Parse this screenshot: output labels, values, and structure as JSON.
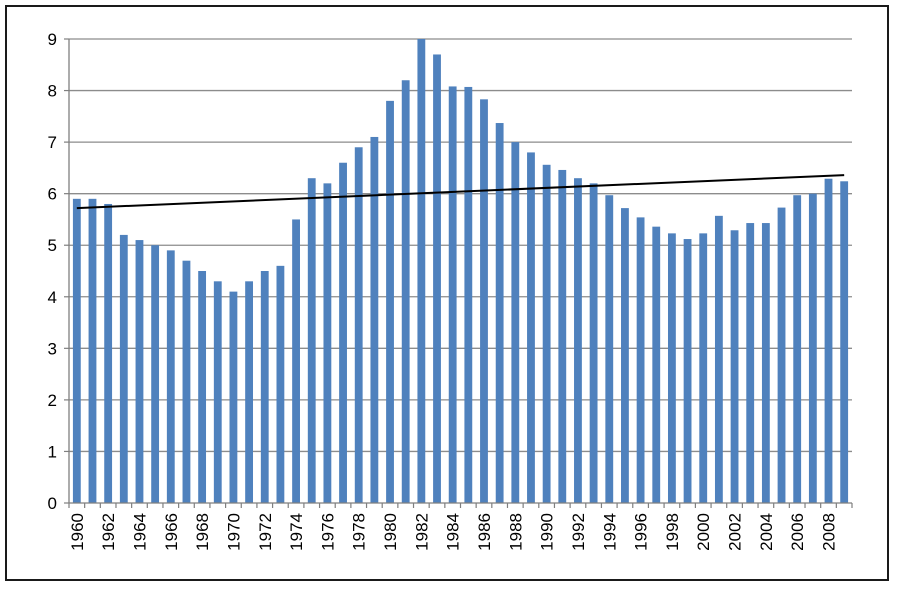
{
  "chart_data": {
    "type": "bar",
    "title": "",
    "xlabel": "",
    "ylabel": "",
    "ylim": [
      0,
      9
    ],
    "y_ticks": [
      "0",
      "1",
      "2",
      "3",
      "4",
      "5",
      "6",
      "7",
      "8",
      "9"
    ],
    "grid": true,
    "legend": "none",
    "bar_color": "#4f81bd",
    "trendline": {
      "type": "linear",
      "color": "#000000",
      "start": 5.72,
      "end": 6.36
    },
    "categories": [
      "1960",
      "1961",
      "1962",
      "1963",
      "1964",
      "1965",
      "1966",
      "1967",
      "1968",
      "1969",
      "1970",
      "1971",
      "1972",
      "1973",
      "1974",
      "1975",
      "1976",
      "1977",
      "1978",
      "1979",
      "1980",
      "1981",
      "1982",
      "1983",
      "1984",
      "1985",
      "1986",
      "1987",
      "1988",
      "1989",
      "1990",
      "1991",
      "1992",
      "1993",
      "1994",
      "1995",
      "1996",
      "1997",
      "1998",
      "1999",
      "2000",
      "2001",
      "2002",
      "2003",
      "2004",
      "2005",
      "2006",
      "2007",
      "2008",
      "2009"
    ],
    "x_tick_labels": [
      "1960",
      "1962",
      "1964",
      "1966",
      "1968",
      "1970",
      "1972",
      "1974",
      "1976",
      "1978",
      "1980",
      "1982",
      "1984",
      "1986",
      "1988",
      "1990",
      "1992",
      "1994",
      "1996",
      "1998",
      "2000",
      "2002",
      "2004",
      "2006",
      "2008"
    ],
    "values": [
      5.9,
      5.9,
      5.8,
      5.2,
      5.1,
      5.0,
      4.9,
      4.7,
      4.5,
      4.3,
      4.1,
      4.3,
      4.5,
      4.6,
      5.5,
      6.3,
      6.2,
      6.6,
      6.9,
      7.1,
      7.8,
      8.2,
      9.0,
      8.7,
      8.08,
      8.07,
      7.83,
      7.37,
      7.0,
      6.8,
      6.56,
      6.46,
      6.3,
      6.2,
      5.97,
      5.72,
      5.54,
      5.36,
      5.23,
      5.12,
      5.23,
      5.57,
      5.29,
      5.43,
      5.43,
      5.73,
      5.97,
      6.0,
      6.29,
      6.24
    ]
  }
}
